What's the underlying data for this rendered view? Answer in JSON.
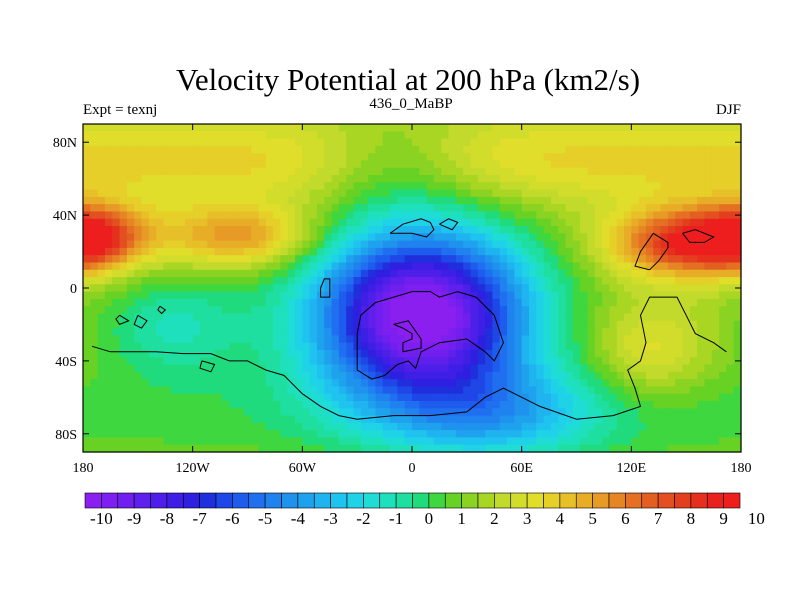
{
  "chart_data": {
    "type": "heatmap",
    "title": "Velocity Potential at 200 hPa (km2/s)",
    "left_label": "Expt = texnj",
    "center_label": "436_0_MaBP",
    "right_label": "DJF",
    "x_range": [
      -180,
      180
    ],
    "y_range": [
      -90,
      90
    ],
    "x_ticks": [
      {
        "value": -180,
        "label": "180"
      },
      {
        "value": -120,
        "label": "120W"
      },
      {
        "value": -60,
        "label": "60W"
      },
      {
        "value": 0,
        "label": "0"
      },
      {
        "value": 60,
        "label": "60E"
      },
      {
        "value": 120,
        "label": "120E"
      },
      {
        "value": 180,
        "label": "180"
      }
    ],
    "y_ticks": [
      {
        "value": 80,
        "label": "80N"
      },
      {
        "value": 40,
        "label": "40N"
      },
      {
        "value": 0,
        "label": "0"
      },
      {
        "value": -40,
        "label": "40S"
      },
      {
        "value": -80,
        "label": "80S"
      }
    ],
    "colorbar_labels": [
      "-10",
      "-9",
      "-8",
      "-7",
      "-6",
      "-5",
      "-4",
      "-3",
      "-2",
      "-1",
      "0",
      "1",
      "2",
      "3",
      "4",
      "5",
      "6",
      "7",
      "8",
      "9",
      "10"
    ],
    "colorbar_levels": [
      -10,
      -9.5,
      -9,
      -8.5,
      -8,
      -7.5,
      -7,
      -6.5,
      -6,
      -5.5,
      -5,
      -4.5,
      -4,
      -3.5,
      -3,
      -2.5,
      -2,
      -1.5,
      -1,
      -0.5,
      0,
      0.5,
      1,
      1.5,
      2,
      2.5,
      3,
      3.5,
      4,
      4.5,
      5,
      5.5,
      6,
      6.5,
      7,
      7.5,
      8,
      8.5,
      9,
      9.5,
      10
    ],
    "colorbar_colors": [
      "#8a1ff0",
      "#7d1ff0",
      "#701fef",
      "#5f1fed",
      "#4f1fea",
      "#3f1fe6",
      "#2f1fe0",
      "#1f2fdc",
      "#1f46e6",
      "#1e5ced",
      "#1f6ff0",
      "#1f82ef",
      "#1f92ee",
      "#1fa2ee",
      "#1fb3ef",
      "#1ec3ef",
      "#1fd2e7",
      "#1fdcd6",
      "#1fe0bd",
      "#1fdfa0",
      "#20db7e",
      "#3fd740",
      "#67d224",
      "#8ad323",
      "#a8d623",
      "#c2da2b",
      "#d2dc2a",
      "#e0de2a",
      "#e5cf28",
      "#e7bf28",
      "#e8ad27",
      "#e79a25",
      "#e68524",
      "#e57023",
      "#e35f21",
      "#e34f20",
      "#e33f1f",
      "#e6301e",
      "#ea201e",
      "#ee1e1e"
    ],
    "fields": {
      "north_band_value": 4.5,
      "highs": [
        {
          "name": "north-pacific-high",
          "lon": -175,
          "lat": 28,
          "value": 8.6
        },
        {
          "name": "north-atlantic-high",
          "lon": -95,
          "lat": 28,
          "value": 7.2
        },
        {
          "name": "asia-pacific-high",
          "lon": 150,
          "lat": 25,
          "value": 9.3
        },
        {
          "name": "australia-high",
          "lon": 130,
          "lat": -35,
          "value": 3.5
        }
      ],
      "lows": [
        {
          "name": "africa-low",
          "lon": 5,
          "lat": -15,
          "value": -10.0
        }
      ]
    },
    "coastline_note": "black coastline outline of the paleogeographic continents overlaid on the field"
  }
}
